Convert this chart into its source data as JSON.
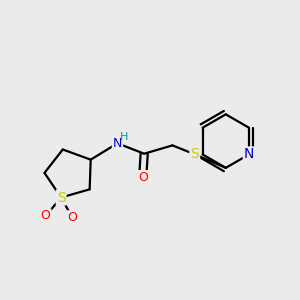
{
  "background_color": "#ebebeb",
  "bond_color": "#000000",
  "bond_width": 1.6,
  "figsize": [
    3.0,
    3.0
  ],
  "dpi": 100,
  "colors": {
    "N": "#0000cc",
    "O": "#ff0000",
    "S": "#cccc00",
    "NH": "#008080"
  }
}
